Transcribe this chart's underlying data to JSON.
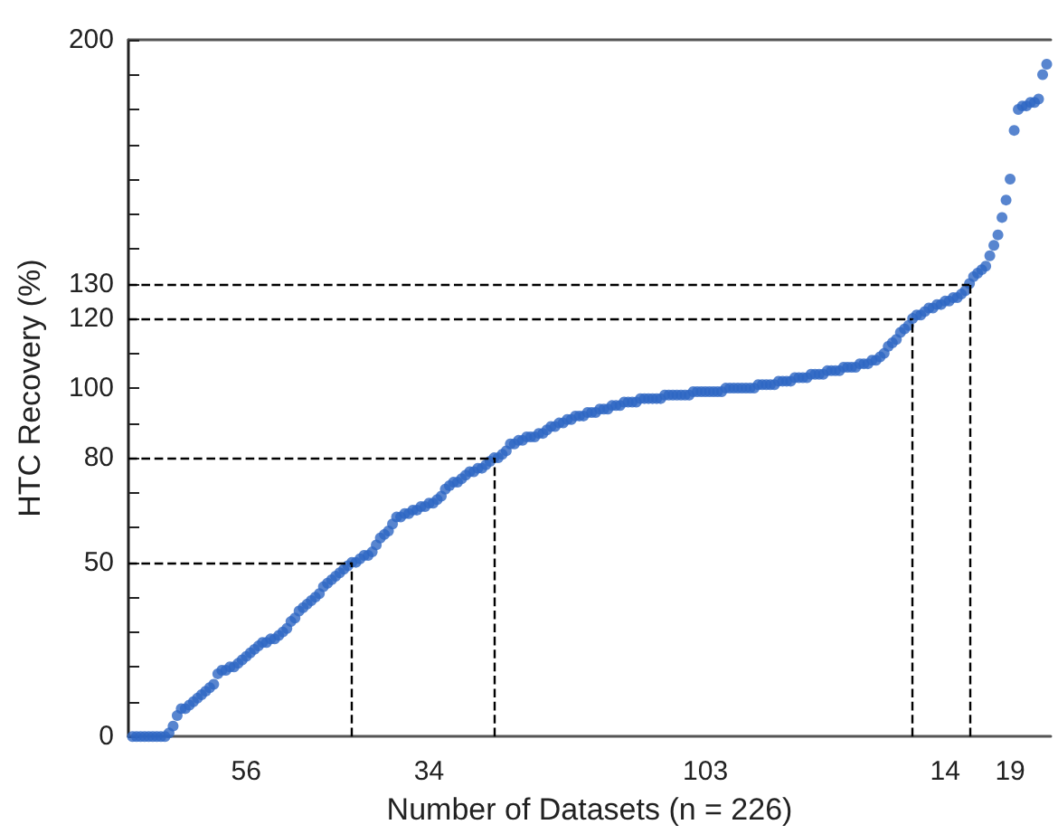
{
  "chart_data": {
    "type": "scatter",
    "xlabel": "Number of Datasets (n = 226)",
    "ylabel": "HTC Recovery (%)",
    "marker": "circle",
    "grid": false,
    "categories": [
      null,
      null,
      null,
      null,
      null,
      null,
      null,
      null,
      null,
      null,
      null,
      null,
      null,
      null,
      null,
      null,
      null,
      null,
      null,
      null,
      null,
      null,
      null,
      null,
      null,
      null,
      null,
      null,
      "56",
      null,
      null,
      null,
      null,
      null,
      null,
      null,
      null,
      null,
      null,
      null,
      null,
      null,
      null,
      null,
      null,
      null,
      null,
      null,
      null,
      null,
      null,
      null,
      null,
      null,
      null,
      null,
      null,
      null,
      null,
      null,
      null,
      null,
      null,
      null,
      null,
      null,
      null,
      null,
      null,
      null,
      null,
      null,
      null,
      "34",
      null,
      null,
      null,
      null,
      null,
      null,
      null,
      null,
      null,
      null,
      null,
      null,
      null,
      null,
      null,
      null,
      null,
      null,
      null,
      null,
      null,
      null,
      null,
      null,
      null,
      null,
      null,
      null,
      null,
      null,
      null,
      null,
      null,
      null,
      null,
      null,
      null,
      null,
      null,
      null,
      null,
      null,
      null,
      null,
      null,
      null,
      null,
      null,
      null,
      null,
      null,
      null,
      null,
      null,
      null,
      null,
      null,
      null,
      null,
      null,
      null,
      null,
      null,
      null,
      null,
      null,
      null,
      "103",
      null,
      null,
      null,
      null,
      null,
      null,
      null,
      null,
      null,
      null,
      null,
      null,
      null,
      null,
      null,
      null,
      null,
      null,
      null,
      null,
      null,
      null,
      null,
      null,
      null,
      null,
      null,
      null,
      null,
      null,
      null,
      null,
      null,
      null,
      null,
      null,
      null,
      null,
      null,
      null,
      null,
      null,
      null,
      null,
      null,
      null,
      null,
      null,
      null,
      null,
      null,
      null,
      null,
      null,
      null,
      null,
      null,
      null,
      "14",
      null,
      null,
      null,
      null,
      null,
      null,
      null,
      null,
      null,
      null,
      null,
      null,
      null,
      null,
      null,
      "19",
      null,
      null,
      null,
      null,
      null,
      null,
      null,
      null,
      null
    ],
    "ylim": [
      0,
      200
    ],
    "yticks": [
      0,
      {
        "value": 10,
        "label": null
      },
      {
        "value": 20,
        "label": null
      },
      {
        "value": 30,
        "label": null
      },
      {
        "value": 40,
        "label": null
      },
      50,
      {
        "value": 60,
        "label": null
      },
      {
        "value": 70,
        "label": null
      },
      80,
      {
        "value": 90,
        "label": null
      },
      100,
      {
        "value": 110,
        "label": null
      },
      120,
      130,
      {
        "value": 140,
        "label": null
      },
      {
        "value": 150,
        "label": null
      },
      {
        "value": 160,
        "label": null
      },
      {
        "value": 170,
        "label": null
      },
      {
        "value": 180,
        "label": null
      },
      {
        "value": 190,
        "label": null
      },
      200
    ],
    "ref_lines": [
      {
        "axis": "y",
        "value": 50,
        "color": "#000000",
        "line_style": "dashed"
      },
      {
        "axis": "y",
        "value": 80,
        "color": "#000000",
        "line_style": "dashed"
      },
      {
        "axis": "y",
        "value": 120,
        "color": "#000000",
        "line_style": "dashed"
      },
      {
        "axis": "y",
        "value": 130,
        "color": "#000000",
        "line_style": "dashed"
      }
    ],
    "series": [
      {
        "color": "#2e67c3",
        "values": [
          0,
          0,
          0,
          0,
          0,
          0,
          0,
          0,
          0,
          1,
          3,
          6,
          8,
          8,
          9,
          10,
          11,
          12,
          13,
          14,
          15,
          18,
          19,
          19,
          20,
          20,
          21,
          22,
          23,
          24,
          25,
          26,
          27,
          27,
          28,
          28,
          29,
          30,
          31,
          33,
          34,
          36,
          37,
          38,
          39,
          40,
          41,
          43,
          44,
          45,
          46,
          47,
          48,
          49,
          50,
          50,
          51,
          52,
          52,
          53,
          55,
          57,
          58,
          59,
          61,
          63,
          63,
          64,
          64,
          65,
          65,
          66,
          66,
          67,
          67,
          68,
          69,
          71,
          72,
          73,
          73,
          74,
          75,
          76,
          76,
          77,
          77,
          78,
          79,
          80,
          80,
          81,
          82,
          84,
          84,
          85,
          85,
          86,
          86,
          86,
          87,
          87,
          88,
          89,
          89,
          90,
          90,
          91,
          91,
          92,
          92,
          92,
          93,
          93,
          93,
          94,
          94,
          94,
          95,
          95,
          95,
          96,
          96,
          96,
          96,
          97,
          97,
          97,
          97,
          97,
          97,
          98,
          98,
          98,
          98,
          98,
          98,
          98,
          99,
          99,
          99,
          99,
          99,
          99,
          99,
          99,
          100,
          100,
          100,
          100,
          100,
          100,
          100,
          100,
          101,
          101,
          101,
          101,
          101,
          102,
          102,
          102,
          102,
          103,
          103,
          103,
          103,
          104,
          104,
          104,
          104,
          105,
          105,
          105,
          105,
          106,
          106,
          106,
          106,
          107,
          107,
          107,
          108,
          108,
          109,
          110,
          112,
          113,
          114,
          116,
          117,
          118,
          120,
          121,
          121,
          122,
          123,
          123,
          124,
          124,
          125,
          125,
          126,
          126,
          127,
          128,
          130,
          132,
          133,
          134,
          135,
          138,
          141,
          144,
          149,
          154,
          160,
          174,
          180,
          181,
          181,
          182,
          182,
          183,
          190,
          193
        ]
      }
    ]
  }
}
